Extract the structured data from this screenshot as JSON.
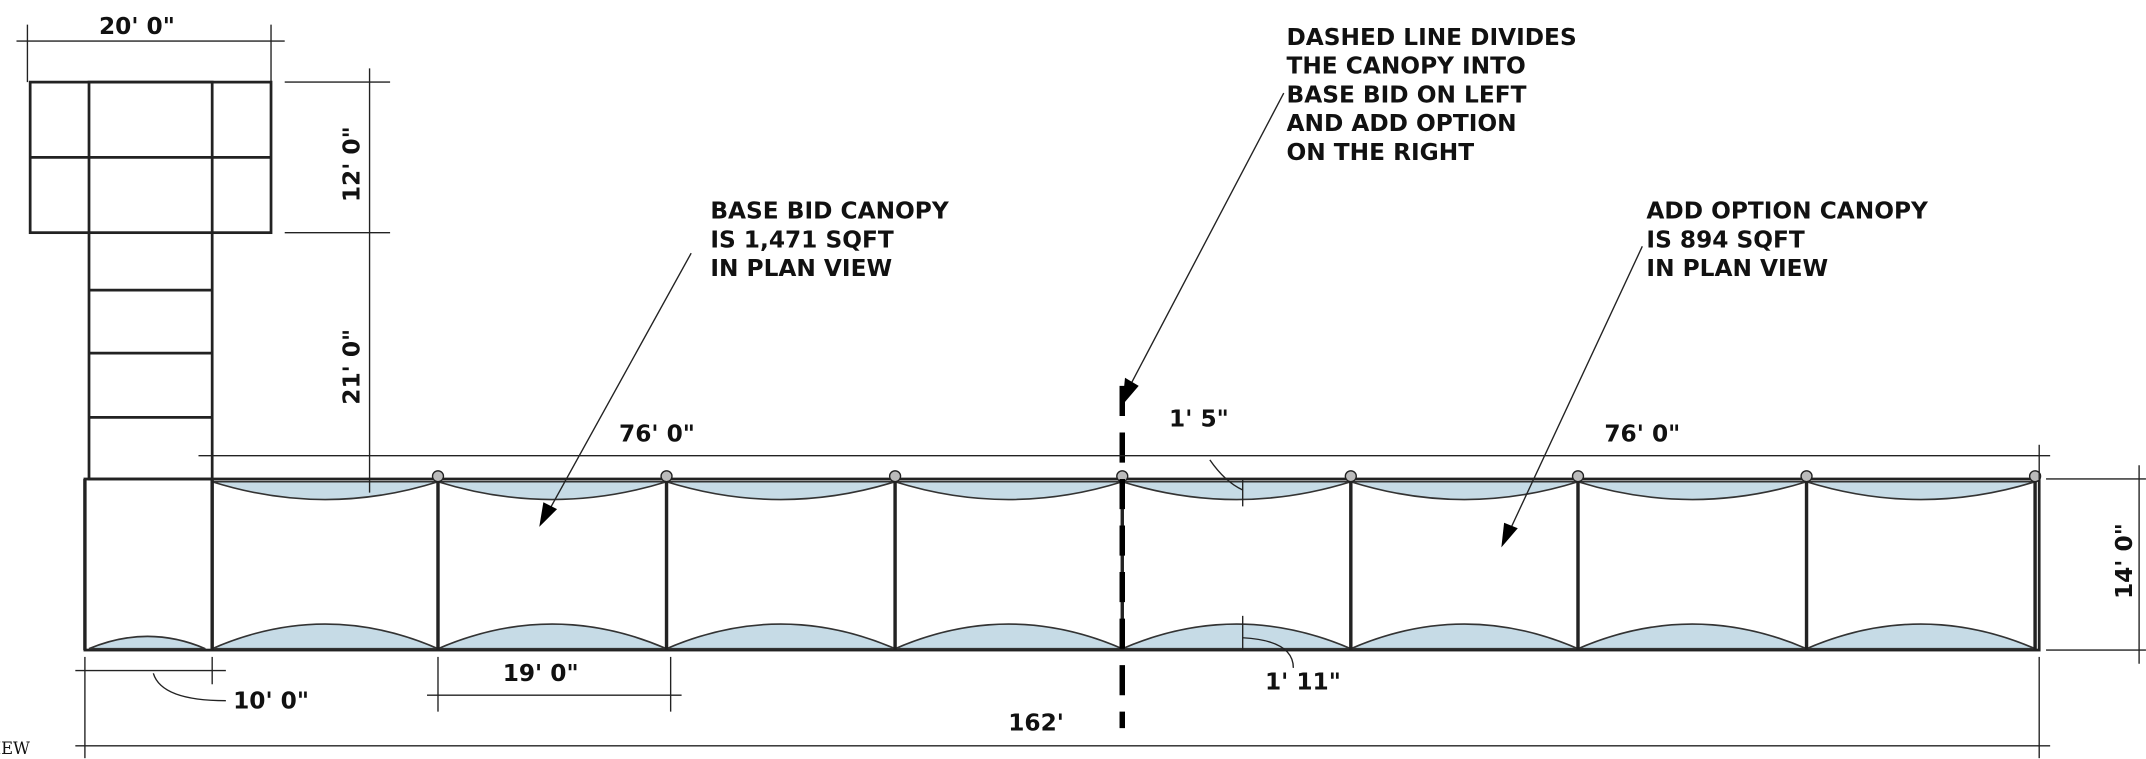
{
  "dimensions": [
    {
      "label": "20' 0\""
    },
    {
      "label": "12' 0\""
    },
    {
      "label": "21' 0\""
    },
    {
      "label": "76' 0\""
    },
    {
      "label": "76' 0\""
    },
    {
      "label": "1' 5\""
    },
    {
      "label": "14' 0\""
    },
    {
      "label": "10' 0\""
    },
    {
      "label": "19' 0\""
    },
    {
      "label": "162'"
    },
    {
      "label": "1' 11\""
    }
  ],
  "annotations": [
    {
      "lines": [
        "DASHED LINE DIVIDES",
        "THE CANOPY INTO",
        "BASE BID ON LEFT",
        "AND ADD OPTION",
        "ON THE RIGHT"
      ]
    },
    {
      "lines": [
        "BASE BID CANOPY",
        "IS 1,471 SQFT",
        "IN PLAN VIEW"
      ]
    },
    {
      "lines": [
        "ADD OPTION CANOPY",
        "IS 894 SQFT",
        "IN PLAN VIEW"
      ]
    }
  ],
  "view_label": "IEW"
}
